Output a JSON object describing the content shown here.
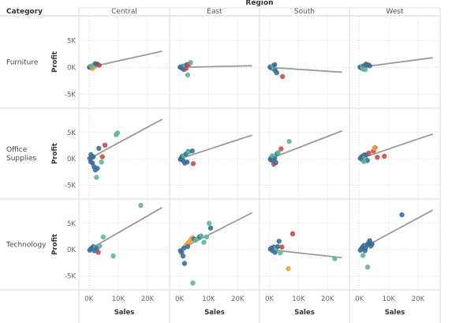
{
  "chart_data": {
    "type": "scatter",
    "title": "",
    "column_header": "Region",
    "row_header": "Category",
    "regions": [
      "Central",
      "East",
      "South",
      "West"
    ],
    "categories": [
      {
        "label_lines": [
          "Furniture"
        ]
      },
      {
        "label_lines": [
          "Office",
          "Supplies"
        ]
      },
      {
        "label_lines": [
          "Technology"
        ]
      }
    ],
    "xlabel": "Sales",
    "ylabel": "Profit",
    "xlim": [
      -1800,
      27000
    ],
    "ylim": [
      -7000,
      9000
    ],
    "x_ticks": [
      0,
      10000,
      20000
    ],
    "x_tick_labels": [
      "0K",
      "10K",
      "20K"
    ],
    "y_ticks": [
      5000,
      0,
      -5000
    ],
    "y_tick_labels": [
      "5K",
      "0K",
      "-5K"
    ],
    "colors": {
      "blue": "#3b6e98",
      "teal": "#5fb3a0",
      "red": "#c94a4a",
      "orange": "#f0a13b",
      "trend": "#9a9a9a"
    },
    "panels": [
      [
        {
          "trend": [
            [
              0,
              0
            ],
            [
              25000,
              3000
            ]
          ],
          "points": [
            [
              200,
              30,
              "blue"
            ],
            [
              600,
              -50,
              "blue"
            ],
            [
              1000,
              100,
              "blue"
            ],
            [
              1500,
              300,
              "blue"
            ],
            [
              2000,
              200,
              "orange"
            ],
            [
              2500,
              500,
              "teal"
            ],
            [
              3000,
              600,
              "blue"
            ],
            [
              3500,
              400,
              "red"
            ],
            [
              1200,
              -200,
              "orange"
            ],
            [
              2200,
              700,
              "blue"
            ],
            [
              800,
              250,
              "teal"
            ]
          ]
        },
        {
          "trend": [
            [
              0,
              0
            ],
            [
              25000,
              300
            ]
          ],
          "points": [
            [
              200,
              50,
              "blue"
            ],
            [
              700,
              -100,
              "blue"
            ],
            [
              1200,
              200,
              "blue"
            ],
            [
              1800,
              300,
              "teal"
            ],
            [
              2500,
              500,
              "blue"
            ],
            [
              3200,
              600,
              "red"
            ],
            [
              3800,
              900,
              "teal"
            ],
            [
              2800,
              -1400,
              "teal"
            ],
            [
              1500,
              -400,
              "blue"
            ],
            [
              2200,
              -200,
              "red"
            ]
          ]
        },
        {
          "trend": [
            [
              0,
              0
            ],
            [
              25000,
              -900
            ]
          ],
          "points": [
            [
              200,
              50,
              "blue"
            ],
            [
              600,
              -100,
              "blue"
            ],
            [
              1000,
              200,
              "blue"
            ],
            [
              1500,
              -300,
              "teal"
            ],
            [
              2000,
              -600,
              "blue"
            ],
            [
              2500,
              -1000,
              "blue"
            ],
            [
              4500,
              -1700,
              "red"
            ],
            [
              1200,
              300,
              "teal"
            ],
            [
              1800,
              500,
              "blue"
            ]
          ]
        },
        {
          "trend": [
            [
              0,
              0
            ],
            [
              25000,
              1800
            ]
          ],
          "points": [
            [
              200,
              50,
              "blue"
            ],
            [
              600,
              -100,
              "blue"
            ],
            [
              1000,
              200,
              "teal"
            ],
            [
              1500,
              300,
              "blue"
            ],
            [
              2000,
              -400,
              "teal"
            ],
            [
              2500,
              400,
              "blue"
            ],
            [
              3000,
              500,
              "red"
            ],
            [
              3500,
              300,
              "blue"
            ],
            [
              1200,
              -300,
              "teal"
            ],
            [
              2200,
              600,
              "blue"
            ]
          ]
        }
      ],
      [
        {
          "trend": [
            [
              0,
              0
            ],
            [
              25000,
              7500
            ]
          ],
          "points": [
            [
              300,
              100,
              "blue"
            ],
            [
              600,
              -500,
              "blue"
            ],
            [
              900,
              300,
              "blue"
            ],
            [
              1200,
              -800,
              "blue"
            ],
            [
              1500,
              400,
              "blue"
            ],
            [
              1800,
              -1500,
              "blue"
            ],
            [
              2200,
              -2100,
              "blue"
            ],
            [
              2600,
              -3500,
              "teal"
            ],
            [
              2900,
              -1800,
              "blue"
            ],
            [
              3400,
              2000,
              "blue"
            ],
            [
              4300,
              -600,
              "teal"
            ],
            [
              4600,
              400,
              "red"
            ],
            [
              5500,
              2600,
              "red"
            ],
            [
              9300,
              4600,
              "teal"
            ],
            [
              9800,
              4900,
              "teal"
            ],
            [
              700,
              800,
              "blue"
            ]
          ]
        },
        {
          "trend": [
            [
              0,
              0
            ],
            [
              25000,
              4500
            ]
          ],
          "points": [
            [
              300,
              -100,
              "blue"
            ],
            [
              600,
              200,
              "blue"
            ],
            [
              900,
              500,
              "blue"
            ],
            [
              1200,
              -300,
              "blue"
            ],
            [
              1500,
              600,
              "teal"
            ],
            [
              1800,
              -800,
              "blue"
            ],
            [
              2200,
              900,
              "blue"
            ],
            [
              2600,
              -600,
              "blue"
            ],
            [
              3000,
              1400,
              "blue"
            ],
            [
              3200,
              1300,
              "teal"
            ],
            [
              4400,
              1500,
              "blue"
            ],
            [
              4700,
              -900,
              "red"
            ]
          ]
        },
        {
          "trend": [
            [
              0,
              0
            ],
            [
              25000,
              5300
            ]
          ],
          "points": [
            [
              300,
              -100,
              "blue"
            ],
            [
              600,
              200,
              "blue"
            ],
            [
              900,
              -300,
              "blue"
            ],
            [
              1200,
              300,
              "blue"
            ],
            [
              1500,
              -1000,
              "red"
            ],
            [
              1800,
              100,
              "blue"
            ],
            [
              2200,
              -700,
              "blue"
            ],
            [
              2600,
              1000,
              "blue"
            ],
            [
              3000,
              1200,
              "teal"
            ],
            [
              4000,
              1900,
              "red"
            ],
            [
              6800,
              3300,
              "teal"
            ],
            [
              1000,
              600,
              "teal"
            ]
          ]
        },
        {
          "trend": [
            [
              0,
              0
            ],
            [
              25000,
              4700
            ]
          ],
          "points": [
            [
              300,
              100,
              "blue"
            ],
            [
              700,
              400,
              "blue"
            ],
            [
              1100,
              -200,
              "blue"
            ],
            [
              1500,
              700,
              "blue"
            ],
            [
              1900,
              300,
              "teal"
            ],
            [
              2300,
              800,
              "blue"
            ],
            [
              2700,
              -300,
              "blue"
            ],
            [
              3200,
              1100,
              "red"
            ],
            [
              4800,
              1500,
              "red"
            ],
            [
              5300,
              2100,
              "red"
            ],
            [
              5100,
              2000,
              "orange"
            ],
            [
              6100,
              300,
              "red"
            ],
            [
              8500,
              500,
              "red"
            ],
            [
              1500,
              -500,
              "teal"
            ]
          ]
        }
      ],
      [
        {
          "trend": [
            [
              0,
              0
            ],
            [
              25000,
              8000
            ]
          ],
          "points": [
            [
              300,
              -100,
              "blue"
            ],
            [
              700,
              200,
              "blue"
            ],
            [
              1100,
              300,
              "blue"
            ],
            [
              1500,
              600,
              "blue"
            ],
            [
              1900,
              -200,
              "blue"
            ],
            [
              2300,
              500,
              "teal"
            ],
            [
              2700,
              300,
              "blue"
            ],
            [
              3200,
              -500,
              "red"
            ],
            [
              3700,
              700,
              "teal"
            ],
            [
              4900,
              2400,
              "teal"
            ],
            [
              8300,
              -1200,
              "teal"
            ],
            [
              17700,
              8400,
              "teal"
            ]
          ]
        },
        {
          "trend": [
            [
              0,
              0
            ],
            [
              25000,
              7000
            ]
          ],
          "points": [
            [
              300,
              -200,
              "blue"
            ],
            [
              700,
              -500,
              "blue"
            ],
            [
              1200,
              -1200,
              "blue"
            ],
            [
              1700,
              -2600,
              "blue"
            ],
            [
              2100,
              800,
              "orange"
            ],
            [
              2600,
              1000,
              "orange"
            ],
            [
              3000,
              1300,
              "orange"
            ],
            [
              3500,
              1600,
              "orange"
            ],
            [
              4000,
              2000,
              "orange"
            ],
            [
              4500,
              2300,
              "orange"
            ],
            [
              5000,
              2000,
              "blue"
            ],
            [
              5500,
              1800,
              "teal"
            ],
            [
              6500,
              2200,
              "teal"
            ],
            [
              7000,
              2500,
              "blue"
            ],
            [
              7500,
              2600,
              "teal"
            ],
            [
              8400,
              1400,
              "teal"
            ],
            [
              9300,
              2400,
              "teal"
            ],
            [
              10200,
              5000,
              "teal"
            ],
            [
              10700,
              4100,
              "blue"
            ],
            [
              4600,
              -6300,
              "teal"
            ],
            [
              1500,
              300,
              "blue"
            ],
            [
              2800,
              600,
              "blue"
            ]
          ]
        },
        {
          "trend": [
            [
              0,
              0
            ],
            [
              25000,
              -1500
            ]
          ],
          "points": [
            [
              300,
              100,
              "blue"
            ],
            [
              700,
              300,
              "blue"
            ],
            [
              1100,
              -200,
              "blue"
            ],
            [
              1500,
              500,
              "blue"
            ],
            [
              1900,
              -500,
              "blue"
            ],
            [
              2300,
              300,
              "teal"
            ],
            [
              2800,
              600,
              "blue"
            ],
            [
              3300,
              1600,
              "blue"
            ],
            [
              3700,
              -600,
              "teal"
            ],
            [
              4300,
              500,
              "red"
            ],
            [
              6500,
              -3600,
              "orange"
            ],
            [
              8000,
              3000,
              "red"
            ],
            [
              22500,
              -1700,
              "teal"
            ]
          ]
        },
        {
          "trend": [
            [
              0,
              0
            ],
            [
              25000,
              7500
            ]
          ],
          "points": [
            [
              300,
              -100,
              "blue"
            ],
            [
              700,
              200,
              "blue"
            ],
            [
              1100,
              500,
              "blue"
            ],
            [
              1500,
              800,
              "blue"
            ],
            [
              1900,
              -200,
              "blue"
            ],
            [
              2300,
              600,
              "teal"
            ],
            [
              2700,
              1000,
              "blue"
            ],
            [
              3200,
              1300,
              "blue"
            ],
            [
              3500,
              1700,
              "blue"
            ],
            [
              3900,
              700,
              "blue"
            ],
            [
              4300,
              1100,
              "blue"
            ],
            [
              1200,
              -1100,
              "teal"
            ],
            [
              2800,
              -3300,
              "teal"
            ],
            [
              14500,
              6600,
              "blue"
            ],
            [
              2000,
              300,
              "blue"
            ]
          ]
        }
      ]
    ]
  }
}
